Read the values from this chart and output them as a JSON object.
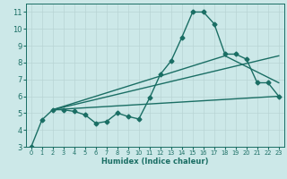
{
  "xlabel": "Humidex (Indice chaleur)",
  "xlim": [
    -0.5,
    23.5
  ],
  "ylim": [
    3,
    11.5
  ],
  "yticks": [
    3,
    4,
    5,
    6,
    7,
    8,
    9,
    10,
    11
  ],
  "xticks": [
    0,
    1,
    2,
    3,
    4,
    5,
    6,
    7,
    8,
    9,
    10,
    11,
    12,
    13,
    14,
    15,
    16,
    17,
    18,
    19,
    20,
    21,
    22,
    23
  ],
  "bg_color": "#cce8e8",
  "grid_color": "#b8d4d4",
  "line_color": "#1a6e64",
  "line_width": 1.0,
  "marker": "D",
  "marker_size": 2.5,
  "series1_x": [
    0,
    1,
    2,
    3,
    4,
    5,
    6,
    7,
    8,
    9,
    10,
    11,
    12,
    13,
    14,
    15,
    16,
    17,
    18,
    19,
    20,
    21,
    22,
    23
  ],
  "series1_y": [
    3.0,
    4.6,
    5.2,
    5.2,
    5.1,
    4.9,
    4.4,
    4.5,
    5.0,
    4.8,
    4.65,
    5.9,
    7.3,
    8.1,
    9.5,
    11.0,
    11.0,
    10.3,
    8.5,
    8.5,
    8.2,
    6.8,
    6.8,
    6.0
  ],
  "series2_x": [
    2,
    23
  ],
  "series2_y": [
    5.2,
    6.0
  ],
  "series3_x": [
    2,
    23
  ],
  "series3_y": [
    5.2,
    8.4
  ],
  "series4_x": [
    2,
    18,
    23
  ],
  "series4_y": [
    5.2,
    8.4,
    6.8
  ]
}
